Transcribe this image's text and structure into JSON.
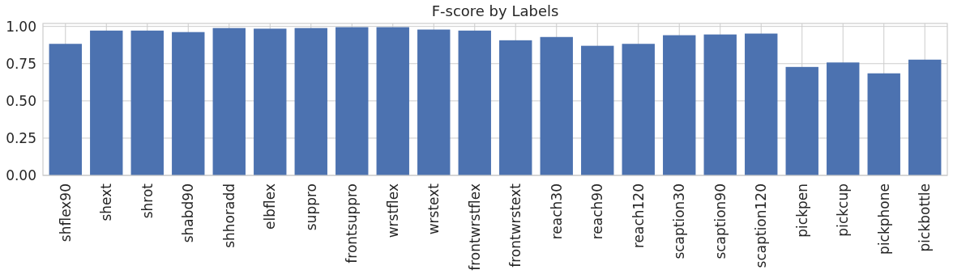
{
  "chart_data": {
    "type": "bar",
    "title": "F-score by Labels",
    "categories": [
      "shflex90",
      "shext",
      "shrot",
      "shabd90",
      "shhoradd",
      "elbflex",
      "suppro",
      "frontsuppro",
      "wrstflex",
      "wrstext",
      "frontwrstflex",
      "frontwrstext",
      "reach30",
      "reach90",
      "reach120",
      "scaption30",
      "scaption90",
      "scaption120",
      "pickpen",
      "pickcup",
      "pickphone",
      "pickbottle"
    ],
    "values": [
      0.883,
      0.972,
      0.972,
      0.962,
      0.989,
      0.985,
      0.989,
      0.995,
      0.995,
      0.979,
      0.972,
      0.907,
      0.929,
      0.87,
      0.883,
      0.941,
      0.946,
      0.952,
      0.728,
      0.758,
      0.685,
      0.777
    ],
    "color": "#4c72b0",
    "ylim": [
      0,
      1.02
    ],
    "yticks": [
      {
        "value": 0,
        "label": "0.00"
      },
      {
        "value": 0.25,
        "label": "0.25"
      },
      {
        "value": 0.5,
        "label": "0.50"
      },
      {
        "value": 0.75,
        "label": "0.75"
      },
      {
        "value": 1,
        "label": "1.00"
      }
    ],
    "grid": true
  }
}
